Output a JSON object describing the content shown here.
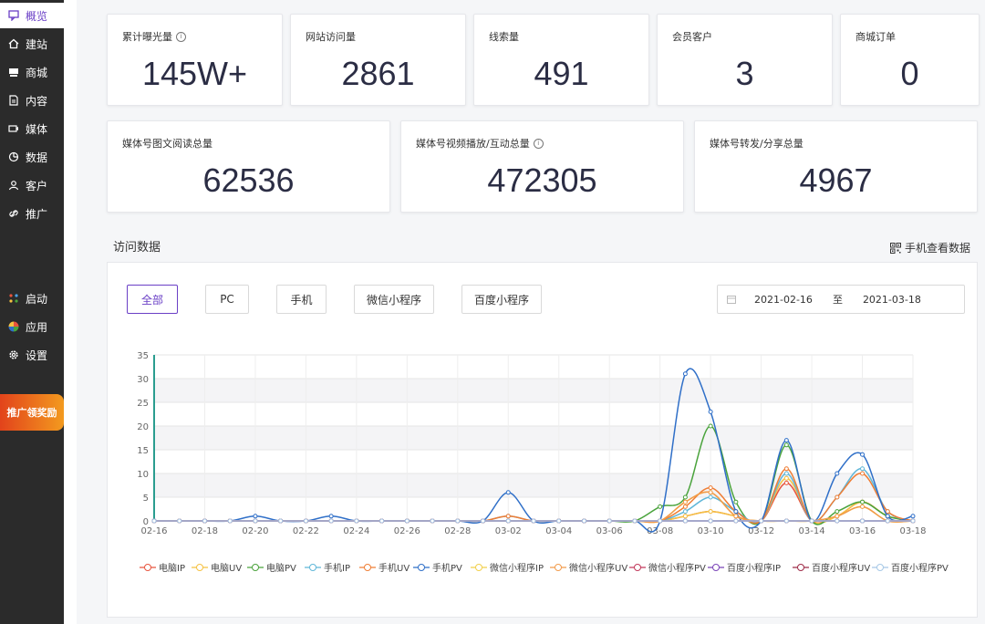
{
  "sidebar": {
    "items": [
      {
        "label": "概览",
        "icon": "chat-icon",
        "active": true
      },
      {
        "label": "建站",
        "icon": "home-icon"
      },
      {
        "label": "商城",
        "icon": "shop-icon"
      },
      {
        "label": "内容",
        "icon": "document-icon"
      },
      {
        "label": "媒体",
        "icon": "media-icon"
      },
      {
        "label": "数据",
        "icon": "chart-pie-icon"
      },
      {
        "label": "客户",
        "icon": "user-icon"
      },
      {
        "label": "推广",
        "icon": "link-icon"
      }
    ],
    "bottom_items": [
      {
        "label": "启动",
        "icon": "launch-icon"
      },
      {
        "label": "应用",
        "icon": "apps-icon"
      },
      {
        "label": "设置",
        "icon": "gear-icon"
      }
    ],
    "promo": "推广领奖励"
  },
  "stats_row1": [
    {
      "label": "累计曝光量",
      "value": "145W+",
      "info": true
    },
    {
      "label": "网站访问量",
      "value": "2861"
    },
    {
      "label": "线索量",
      "value": "491"
    },
    {
      "label": "会员客户",
      "value": "3"
    },
    {
      "label": "商城订单",
      "value": "0"
    }
  ],
  "stats_row2": [
    {
      "label": "媒体号图文阅读总量",
      "value": "62536"
    },
    {
      "label": "媒体号视频播放/互动总量",
      "value": "472305",
      "info": true
    },
    {
      "label": "媒体号转发/分享总量",
      "value": "4967"
    }
  ],
  "section": {
    "title": "访问数据",
    "mobile_link": "手机查看数据"
  },
  "tabs": [
    "全部",
    "PC",
    "手机",
    "微信小程序",
    "百度小程序"
  ],
  "date_range": {
    "start": "2021-02-16",
    "separator": "至",
    "end": "2021-03-18"
  },
  "chart_data": {
    "type": "line",
    "x": [
      "02-16",
      "02-17",
      "02-18",
      "02-19",
      "02-20",
      "02-21",
      "02-22",
      "02-23",
      "02-24",
      "02-25",
      "02-26",
      "02-27",
      "02-28",
      "03-01",
      "03-02",
      "03-03",
      "03-04",
      "03-05",
      "03-06",
      "03-07",
      "03-08",
      "03-09",
      "03-10",
      "03-11",
      "03-12",
      "03-13",
      "03-14",
      "03-15",
      "03-16",
      "03-17",
      "03-18"
    ],
    "x_tick_labels": [
      "02-16",
      "02-18",
      "02-20",
      "02-22",
      "02-24",
      "02-26",
      "02-28",
      "03-02",
      "03-04",
      "03-06",
      "03-08",
      "03-10",
      "03-12",
      "03-14",
      "03-16",
      "03-18"
    ],
    "ylim": [
      0,
      35
    ],
    "y_ticks": [
      0,
      5,
      10,
      15,
      20,
      25,
      30,
      35
    ],
    "series": [
      {
        "name": "电脑IP",
        "color": "#e8543d",
        "values": [
          0,
          0,
          0,
          0,
          0,
          0,
          0,
          0,
          0,
          0,
          0,
          0,
          0,
          0,
          0,
          0,
          0,
          0,
          0,
          0,
          0,
          1,
          2,
          1,
          0,
          8,
          0,
          1,
          4,
          1,
          0
        ]
      },
      {
        "name": "电脑UV",
        "color": "#f5c242",
        "values": [
          0,
          0,
          0,
          0,
          0,
          0,
          0,
          0,
          0,
          0,
          0,
          0,
          0,
          0,
          0,
          0,
          0,
          0,
          0,
          0,
          0,
          1,
          2,
          1,
          0,
          9,
          0,
          1,
          4,
          1,
          0
        ]
      },
      {
        "name": "电脑PV",
        "color": "#4aa33c",
        "values": [
          0,
          0,
          0,
          0,
          0,
          0,
          0,
          0,
          0,
          0,
          0,
          0,
          0,
          0,
          0,
          0,
          0,
          0,
          0,
          0,
          3,
          5,
          20,
          4,
          0,
          16,
          0,
          2,
          4,
          1,
          0
        ]
      },
      {
        "name": "手机IP",
        "color": "#5fb6d8",
        "values": [
          0,
          0,
          0,
          0,
          0,
          0,
          0,
          0,
          0,
          0,
          0,
          0,
          0,
          0,
          1,
          0,
          0,
          0,
          0,
          0,
          0,
          2,
          5,
          2,
          0,
          10,
          0,
          5,
          11,
          2,
          0
        ]
      },
      {
        "name": "手机UV",
        "color": "#ef7d34",
        "values": [
          0,
          0,
          0,
          0,
          0,
          0,
          0,
          0,
          0,
          0,
          0,
          0,
          0,
          0,
          1,
          0,
          0,
          0,
          0,
          0,
          0,
          3,
          7,
          2,
          0,
          11,
          0,
          5,
          10,
          2,
          0
        ]
      },
      {
        "name": "手机PV",
        "color": "#2f6fc8",
        "values": [
          0,
          0,
          0,
          0,
          1,
          0,
          0,
          1,
          0,
          0,
          0,
          0,
          0,
          0,
          6,
          0,
          0,
          0,
          0,
          0,
          0,
          31,
          23,
          2,
          0,
          17,
          0,
          10,
          14,
          1,
          1
        ]
      },
      {
        "name": "微信小程序IP",
        "color": "#f2d04a",
        "values": [
          0,
          0,
          0,
          0,
          0,
          0,
          0,
          0,
          0,
          0,
          0,
          0,
          0,
          0,
          0,
          0,
          0,
          0,
          0,
          0,
          0,
          4,
          6,
          1,
          0,
          0,
          0,
          1,
          3,
          0,
          0
        ]
      },
      {
        "name": "微信小程序UV",
        "color": "#f29a4a",
        "values": [
          0,
          0,
          0,
          0,
          0,
          0,
          0,
          0,
          0,
          0,
          0,
          0,
          0,
          0,
          0,
          0,
          0,
          0,
          0,
          0,
          0,
          4,
          6,
          1,
          0,
          0,
          0,
          1,
          3,
          0,
          0
        ]
      },
      {
        "name": "微信小程序PV",
        "color": "#c2385a",
        "values": [
          0,
          0,
          0,
          0,
          0,
          0,
          0,
          0,
          0,
          0,
          0,
          0,
          0,
          0,
          0,
          0,
          0,
          0,
          0,
          0,
          0,
          0,
          0,
          0,
          0,
          0,
          0,
          0,
          0,
          0,
          0
        ]
      },
      {
        "name": "百度小程序IP",
        "color": "#7b45b8",
        "values": [
          0,
          0,
          0,
          0,
          0,
          0,
          0,
          0,
          0,
          0,
          0,
          0,
          0,
          0,
          0,
          0,
          0,
          0,
          0,
          0,
          0,
          0,
          0,
          0,
          0,
          0,
          0,
          0,
          0,
          0,
          0
        ]
      },
      {
        "name": "百度小程序UV",
        "color": "#9e2a47",
        "values": [
          0,
          0,
          0,
          0,
          0,
          0,
          0,
          0,
          0,
          0,
          0,
          0,
          0,
          0,
          0,
          0,
          0,
          0,
          0,
          0,
          0,
          0,
          0,
          0,
          0,
          0,
          0,
          0,
          0,
          0,
          0
        ]
      },
      {
        "name": "百度小程序PV",
        "color": "#a6c8e6",
        "values": [
          0,
          0,
          0,
          0,
          0,
          0,
          0,
          0,
          0,
          0,
          0,
          0,
          0,
          0,
          0,
          0,
          0,
          0,
          0,
          0,
          0,
          0,
          0,
          0,
          0,
          0,
          0,
          0,
          0,
          0,
          0
        ]
      }
    ],
    "grid": true,
    "legend": "bottom"
  }
}
